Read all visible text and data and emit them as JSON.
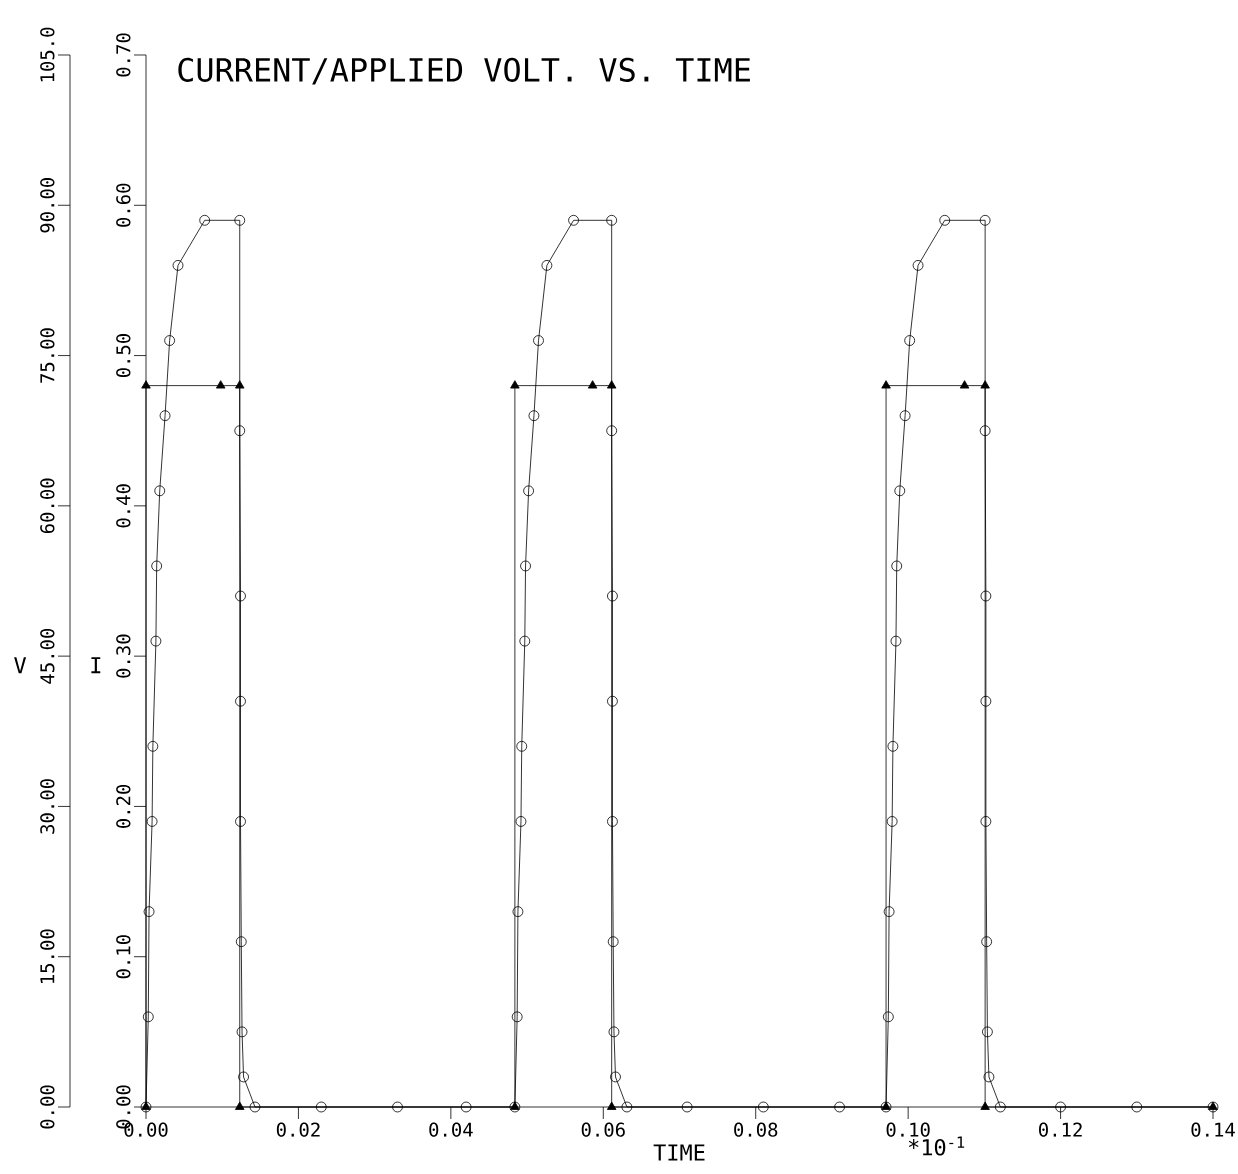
{
  "chart_data": {
    "type": "line",
    "title": "CURRENT/APPLIED VOLT. VS. TIME",
    "xlabel": "TIME",
    "ylabel": "I",
    "y2label": "V",
    "annotations": [
      "*10$^{-1}$"
    ],
    "xlim": [
      0,
      0.14
    ],
    "xticks": [
      {
        "value": 0,
        "label": "0.00"
      },
      {
        "value": 0.02,
        "label": "0.02"
      },
      {
        "value": 0.04,
        "label": "0.04"
      },
      {
        "value": 0.06,
        "label": "0.06"
      },
      {
        "value": 0.08,
        "label": "0.08"
      },
      {
        "value": 0.1,
        "label": "0.10"
      },
      {
        "value": 0.12,
        "label": "0.12"
      },
      {
        "value": 0.14,
        "label": "0.14"
      }
    ],
    "ylim": [
      0,
      0.7
    ],
    "yticks": [
      {
        "value": 0,
        "label": "0.00"
      },
      {
        "value": 0.1,
        "label": "0.10"
      },
      {
        "value": 0.2,
        "label": "0.20"
      },
      {
        "value": 0.3,
        "label": "0.30"
      },
      {
        "value": 0.4,
        "label": "0.40"
      },
      {
        "value": 0.5,
        "label": "0.50"
      },
      {
        "value": 0.6,
        "label": "0.60"
      },
      {
        "value": 0.7,
        "label": "0.70"
      }
    ],
    "y2lim": [
      0,
      105
    ],
    "y2ticks": [
      {
        "value": 0,
        "label": "0.00"
      },
      {
        "value": 15,
        "label": "15.00"
      },
      {
        "value": 30,
        "label": "30.00"
      },
      {
        "value": 45,
        "label": "45.00"
      },
      {
        "value": 60,
        "label": "60.00"
      },
      {
        "value": 75,
        "label": "75.00"
      },
      {
        "value": 90,
        "label": "90.00"
      },
      {
        "value": 105,
        "label": "105.0"
      }
    ],
    "grid": false,
    "series": [
      {
        "color": "#000000",
        "marker": "circle",
        "x": [
          0,
          0.0003,
          0.0004,
          0.0008,
          0.0009,
          0.0013,
          0.0014,
          0.0018,
          0.0025,
          0.0031,
          0.0042,
          0.0077,
          0.0123,
          0.0123,
          0.0124,
          0.0124,
          0.0124,
          0.0125,
          0.0126,
          0.0128,
          0.0143,
          0.023,
          0.033,
          0.042,
          0.0484,
          0.0487,
          0.0488,
          0.0492,
          0.0493,
          0.0497,
          0.0498,
          0.0502,
          0.0509,
          0.0515,
          0.0526,
          0.0561,
          0.0611,
          0.0611,
          0.0612,
          0.0612,
          0.0612,
          0.0613,
          0.0614,
          0.0616,
          0.0631,
          0.071,
          0.081,
          0.091,
          0.0971,
          0.0974,
          0.0975,
          0.0979,
          0.098,
          0.0984,
          0.0985,
          0.0989,
          0.0996,
          0.1002,
          0.1013,
          0.1048,
          0.1101,
          0.1101,
          0.1102,
          0.1102,
          0.1102,
          0.1103,
          0.1104,
          0.1106,
          0.1121,
          0.12,
          0.13,
          0.14
        ],
        "values": [
          0,
          0.06,
          0.13,
          0.19,
          0.24,
          0.31,
          0.36,
          0.41,
          0.46,
          0.51,
          0.56,
          0.59,
          0.59,
          0.45,
          0.34,
          0.27,
          0.19,
          0.11,
          0.05,
          0.02,
          0,
          0,
          0,
          0,
          0,
          0.06,
          0.13,
          0.19,
          0.24,
          0.31,
          0.36,
          0.41,
          0.46,
          0.51,
          0.56,
          0.59,
          0.59,
          0.45,
          0.34,
          0.27,
          0.19,
          0.11,
          0.05,
          0.02,
          0,
          0,
          0,
          0,
          0,
          0.06,
          0.13,
          0.19,
          0.24,
          0.31,
          0.36,
          0.41,
          0.46,
          0.51,
          0.56,
          0.59,
          0.59,
          0.45,
          0.34,
          0.27,
          0.19,
          0.11,
          0.05,
          0.02,
          0,
          0,
          0,
          0
        ]
      },
      {
        "color": "#000000",
        "marker": "triangle",
        "axis": "y2",
        "x": [
          0,
          0,
          0.0098,
          0.0123,
          0.0123,
          0.0484,
          0.0484,
          0.0586,
          0.0611,
          0.0611,
          0.0971,
          0.0971,
          0.1074,
          0.1101,
          0.1101,
          0.14
        ],
        "values": [
          0,
          72,
          72,
          72,
          0,
          0,
          72,
          72,
          72,
          0,
          0,
          72,
          72,
          72,
          0,
          0
        ]
      }
    ]
  }
}
